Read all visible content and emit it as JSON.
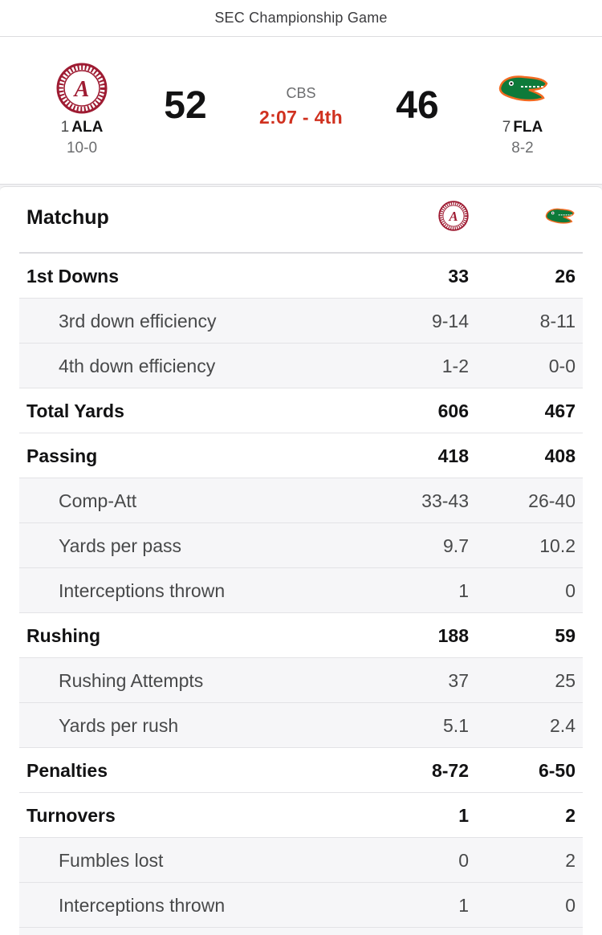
{
  "header": {
    "title": "SEC Championship Game"
  },
  "game": {
    "network": "CBS",
    "clock": "2:07 - 4th",
    "away": {
      "rank": "1",
      "abbr": "ALA",
      "record": "10-0",
      "score": "52",
      "logo": "alabama-logo",
      "color": "#9e1b32"
    },
    "home": {
      "rank": "7",
      "abbr": "FLA",
      "record": "8-2",
      "score": "46",
      "logo": "florida-gator-logo",
      "color": "#0d7a3a"
    }
  },
  "matchup": {
    "title": "Matchup",
    "rows": [
      {
        "label": "1st Downs",
        "away": "33",
        "home": "26",
        "sub": false
      },
      {
        "label": "3rd down efficiency",
        "away": "9-14",
        "home": "8-11",
        "sub": true
      },
      {
        "label": "4th down efficiency",
        "away": "1-2",
        "home": "0-0",
        "sub": true
      },
      {
        "label": "Total Yards",
        "away": "606",
        "home": "467",
        "sub": false
      },
      {
        "label": "Passing",
        "away": "418",
        "home": "408",
        "sub": false
      },
      {
        "label": "Comp-Att",
        "away": "33-43",
        "home": "26-40",
        "sub": true
      },
      {
        "label": "Yards per pass",
        "away": "9.7",
        "home": "10.2",
        "sub": true
      },
      {
        "label": "Interceptions thrown",
        "away": "1",
        "home": "0",
        "sub": true
      },
      {
        "label": "Rushing",
        "away": "188",
        "home": "59",
        "sub": false
      },
      {
        "label": "Rushing Attempts",
        "away": "37",
        "home": "25",
        "sub": true
      },
      {
        "label": "Yards per rush",
        "away": "5.1",
        "home": "2.4",
        "sub": true
      },
      {
        "label": "Penalties",
        "away": "8-72",
        "home": "6-50",
        "sub": false
      },
      {
        "label": "Turnovers",
        "away": "1",
        "home": "2",
        "sub": false
      },
      {
        "label": "Fumbles lost",
        "away": "0",
        "home": "2",
        "sub": true
      },
      {
        "label": "Interceptions thrown",
        "away": "1",
        "home": "0",
        "sub": true
      },
      {
        "label": "",
        "away": "",
        "home": "",
        "sub": true
      }
    ]
  }
}
